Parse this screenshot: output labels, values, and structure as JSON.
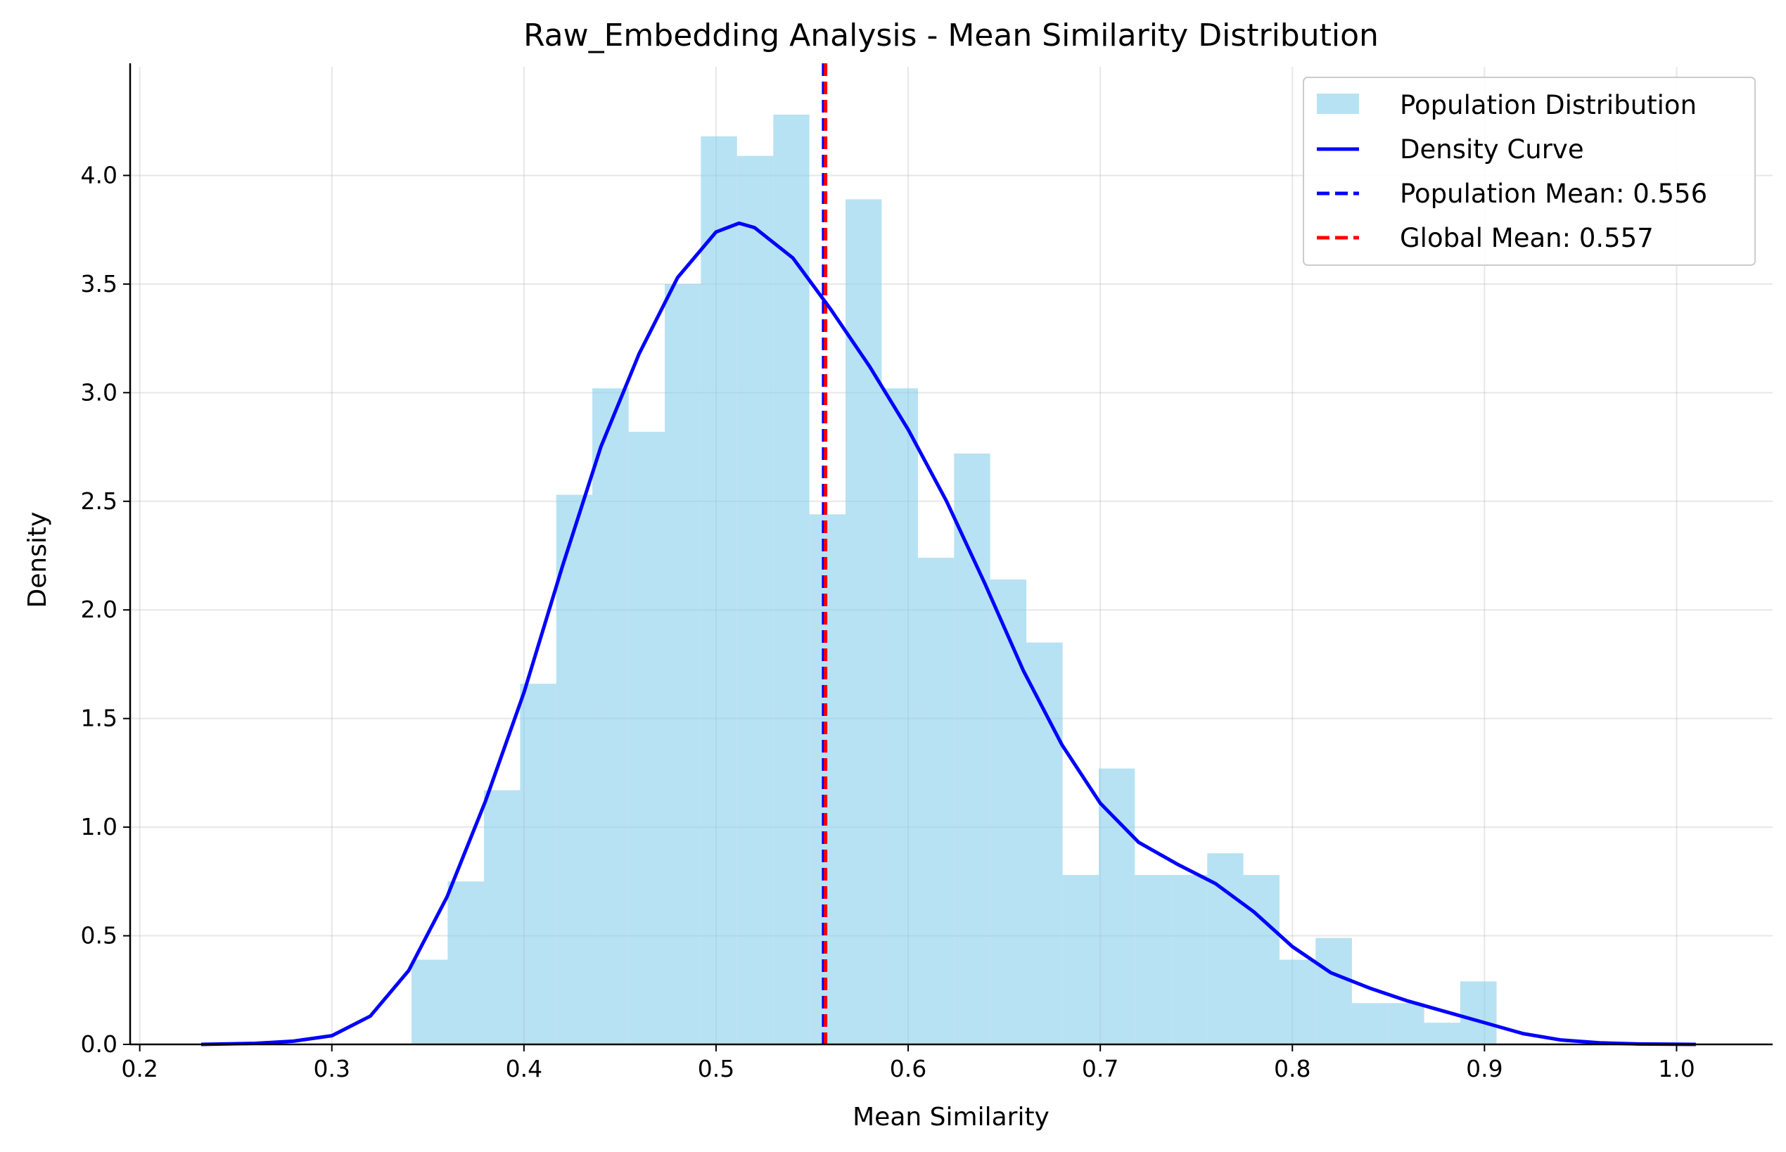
{
  "chart_data": {
    "type": "bar",
    "title": "Raw_Embedding Analysis - Mean Similarity Distribution",
    "xlabel": "Mean Similarity",
    "ylabel": "Density",
    "xlim": [
      0.195,
      1.05
    ],
    "ylim": [
      0,
      4.5
    ],
    "xticks": [
      "0.2",
      "0.3",
      "0.4",
      "0.5",
      "0.6",
      "0.7",
      "0.8",
      "0.9",
      "1.0"
    ],
    "yticks": [
      "0.0",
      "0.5",
      "1.0",
      "1.5",
      "2.0",
      "2.5",
      "3.0",
      "3.5",
      "4.0"
    ],
    "grid": true,
    "legend_position": "top-right",
    "histogram": {
      "name": "Population Distribution",
      "color": "#87CEEB",
      "bin_edges": [
        0.3415,
        0.3603,
        0.3792,
        0.398,
        0.4168,
        0.4356,
        0.4545,
        0.4733,
        0.4921,
        0.5109,
        0.5298,
        0.5486,
        0.5674,
        0.5862,
        0.6051,
        0.6239,
        0.6427,
        0.6615,
        0.6804,
        0.6992,
        0.718,
        0.7368,
        0.7557,
        0.7745,
        0.7933,
        0.8121,
        0.831,
        0.8498,
        0.8686,
        0.8874,
        0.9063
      ],
      "values": [
        0.39,
        0.75,
        1.17,
        1.66,
        2.53,
        3.02,
        2.82,
        3.5,
        4.18,
        4.09,
        4.28,
        2.44,
        3.89,
        3.02,
        2.24,
        2.72,
        2.14,
        1.85,
        0.78,
        1.27,
        0.78,
        0.78,
        0.88,
        0.78,
        0.39,
        0.49,
        0.19,
        0.19,
        0.1,
        0.29
      ]
    },
    "density_curve": {
      "name": "Density Curve",
      "color": "#0000FF",
      "x": [
        0.232,
        0.26,
        0.28,
        0.3,
        0.32,
        0.34,
        0.36,
        0.38,
        0.4,
        0.42,
        0.44,
        0.46,
        0.48,
        0.5,
        0.512,
        0.52,
        0.54,
        0.56,
        0.58,
        0.6,
        0.62,
        0.64,
        0.66,
        0.68,
        0.7,
        0.72,
        0.74,
        0.76,
        0.78,
        0.8,
        0.82,
        0.84,
        0.86,
        0.88,
        0.9,
        0.92,
        0.94,
        0.96,
        0.98,
        1.01
      ],
      "y": [
        0.0,
        0.005,
        0.015,
        0.04,
        0.13,
        0.34,
        0.68,
        1.12,
        1.62,
        2.2,
        2.75,
        3.18,
        3.53,
        3.74,
        3.78,
        3.76,
        3.62,
        3.38,
        3.12,
        2.83,
        2.5,
        2.12,
        1.72,
        1.38,
        1.11,
        0.93,
        0.83,
        0.74,
        0.61,
        0.45,
        0.33,
        0.26,
        0.2,
        0.15,
        0.1,
        0.05,
        0.02,
        0.007,
        0.002,
        0.0
      ]
    },
    "population_mean": {
      "name": "Population Mean: 0.556",
      "value": 0.556,
      "color": "#0000FF",
      "style": "dashed"
    },
    "global_mean": {
      "name": "Global Mean: 0.557",
      "value": 0.557,
      "color": "#FF0000",
      "style": "dashed"
    }
  }
}
